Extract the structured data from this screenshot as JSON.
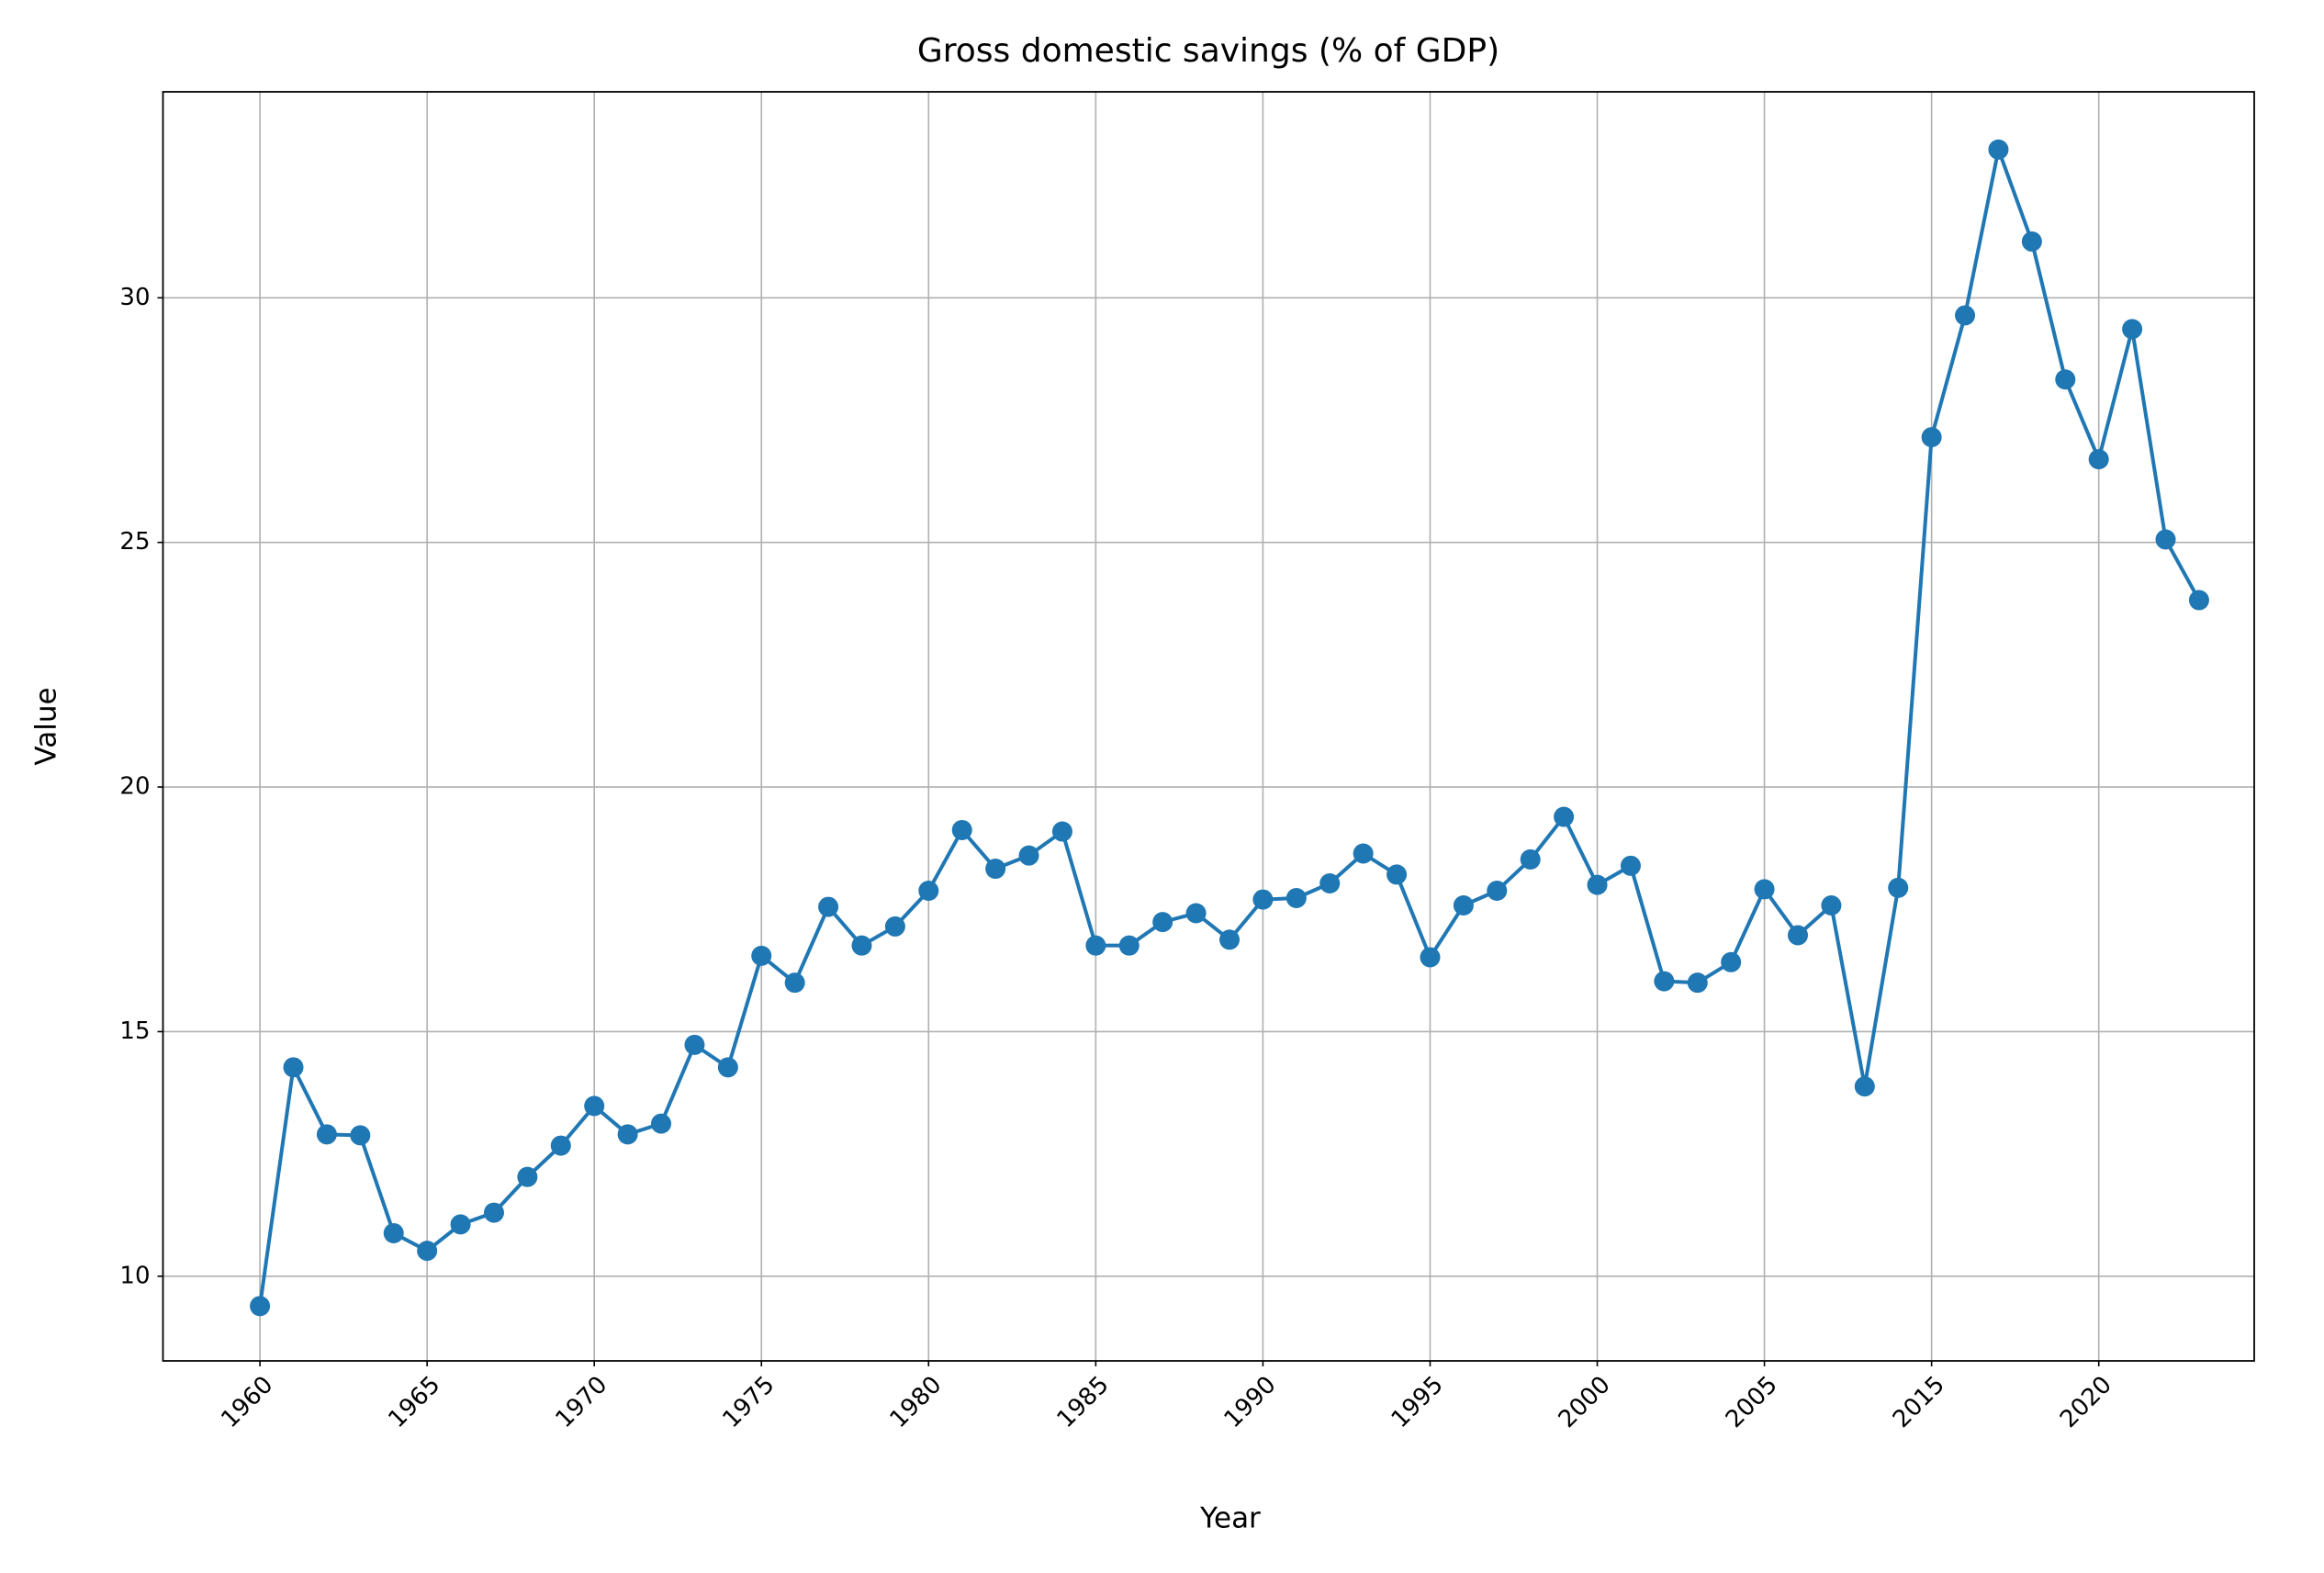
{
  "chart_data": {
    "type": "line",
    "title": "Gross domestic savings (% of GDP)",
    "x_label": "Year",
    "y_label": "Value",
    "categories": [
      "1960",
      null,
      null,
      null,
      null,
      "1965",
      null,
      null,
      null,
      null,
      "1970",
      null,
      null,
      null,
      null,
      "1975",
      null,
      null,
      null,
      null,
      "1980",
      null,
      null,
      null,
      null,
      "1985",
      null,
      null,
      null,
      null,
      "1990",
      null,
      null,
      null,
      null,
      "1995",
      null,
      null,
      null,
      null,
      "2000",
      null,
      null,
      null,
      null,
      "2005",
      null,
      null,
      null,
      null,
      "2015",
      null,
      null,
      null,
      null,
      "2020",
      null,
      null,
      null
    ],
    "values": [
      9.39,
      14.27,
      12.9,
      12.88,
      10.88,
      10.52,
      11.06,
      11.3,
      12.03,
      12.67,
      13.48,
      12.9,
      13.12,
      14.73,
      14.27,
      16.55,
      16.0,
      17.55,
      16.76,
      17.15,
      17.88,
      19.12,
      18.33,
      18.6,
      19.09,
      16.76,
      16.76,
      17.24,
      17.42,
      16.88,
      17.7,
      17.73,
      18.03,
      18.64,
      18.21,
      16.52,
      17.58,
      17.88,
      18.52,
      19.39,
      18.0,
      18.39,
      16.03,
      16.0,
      16.42,
      17.91,
      16.97,
      17.58,
      13.88,
      17.94,
      27.15,
      29.64,
      33.03,
      31.15,
      28.33,
      26.7,
      29.36,
      25.06,
      23.82
    ],
    "color": "#1f77b4",
    "ylim": [
      8.27,
      34.21
    ],
    "yticks": [
      10,
      15,
      20,
      25,
      30
    ],
    "grid": true
  }
}
